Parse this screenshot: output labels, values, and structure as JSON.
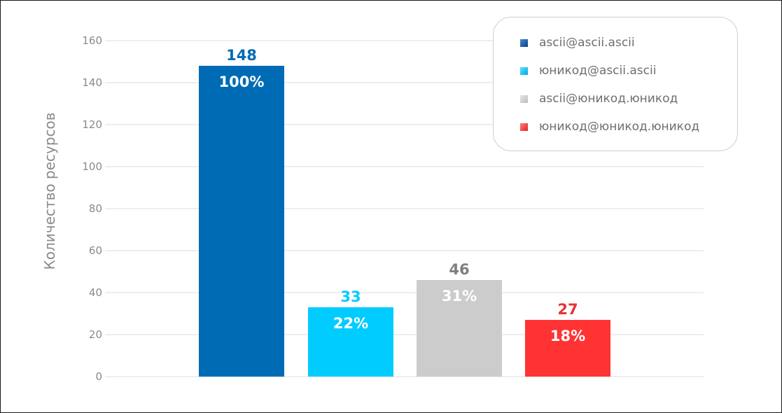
{
  "chart_data": {
    "type": "bar",
    "ylabel": "Количество ресурсов",
    "ylim": [
      0,
      160
    ],
    "yticks": [
      0,
      20,
      40,
      60,
      80,
      100,
      120,
      140,
      160
    ],
    "grid": true,
    "legend_position": "top-right",
    "bars": [
      {
        "name": "ascii@ascii.ascii",
        "value": 148,
        "value_label": "148",
        "percent_label": "100%",
        "color": "#006BB5",
        "swatch": [
          "#4a8ad0",
          "#0a3f86"
        ]
      },
      {
        "name": "юникод@ascii.ascii",
        "value": 33,
        "value_label": "33",
        "percent_label": "22%",
        "color": "#00CCFF",
        "swatch": [
          "#5fe0ff",
          "#00a8e0"
        ]
      },
      {
        "name": "ascii@юникод.юникод",
        "value": 46,
        "value_label": "46",
        "percent_label": "31%",
        "color": "#CCCCCC",
        "swatch": [
          "#e6e6e6",
          "#bdbdbd"
        ]
      },
      {
        "name": "юникод@юникод.юникод",
        "value": 27,
        "value_label": "27",
        "percent_label": "18%",
        "color": "#FF3333",
        "swatch": [
          "#ff8080",
          "#e52020"
        ]
      }
    ],
    "value_label_colors": [
      "#006BB5",
      "#00CCFF",
      "#7f7f7f",
      "#E63333"
    ]
  }
}
